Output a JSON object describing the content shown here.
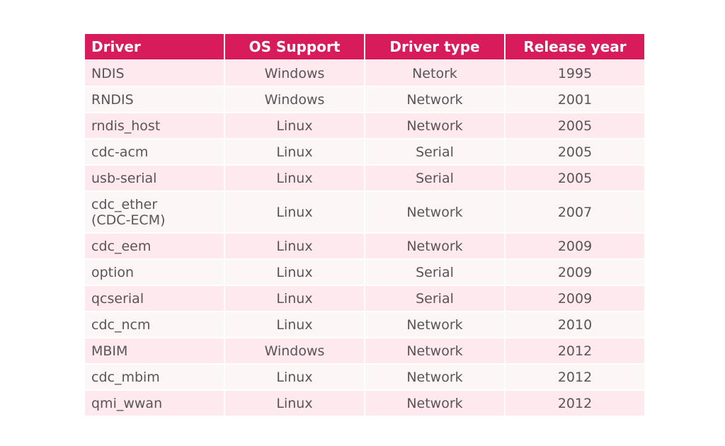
{
  "table": {
    "headers": [
      "Driver",
      "OS Support",
      "Driver type",
      "Release year"
    ],
    "rows": [
      {
        "driver": "NDIS",
        "os": "Windows",
        "type": "Netork",
        "year": "1995"
      },
      {
        "driver": "RNDIS",
        "os": "Windows",
        "type": "Network",
        "year": "2001"
      },
      {
        "driver": "rndis_host",
        "os": "Linux",
        "type": "Network",
        "year": "2005"
      },
      {
        "driver": "cdc-acm",
        "os": "Linux",
        "type": "Serial",
        "year": "2005"
      },
      {
        "driver": "usb-serial",
        "os": "Linux",
        "type": "Serial",
        "year": "2005"
      },
      {
        "driver": "cdc_ether\n(CDC-ECM)",
        "os": "Linux",
        "type": "Network",
        "year": "2007"
      },
      {
        "driver": "cdc_eem",
        "os": "Linux",
        "type": "Network",
        "year": "2009"
      },
      {
        "driver": "option",
        "os": "Linux",
        "type": "Serial",
        "year": "2009"
      },
      {
        "driver": "qcserial",
        "os": "Linux",
        "type": "Serial",
        "year": "2009"
      },
      {
        "driver": "cdc_ncm",
        "os": "Linux",
        "type": "Network",
        "year": "2010"
      },
      {
        "driver": "MBIM",
        "os": "Windows",
        "type": "Network",
        "year": "2012"
      },
      {
        "driver": "cdc_mbim",
        "os": "Linux",
        "type": "Network",
        "year": "2012"
      },
      {
        "driver": "qmi_wwan",
        "os": "Linux",
        "type": "Network",
        "year": "2012"
      }
    ]
  },
  "colors": {
    "header_bg": "#d81b5a",
    "header_text": "#ffffff",
    "row_odd": "#fde9ee",
    "row_even": "#fdf6f7",
    "cell_text": "#5a5458"
  }
}
